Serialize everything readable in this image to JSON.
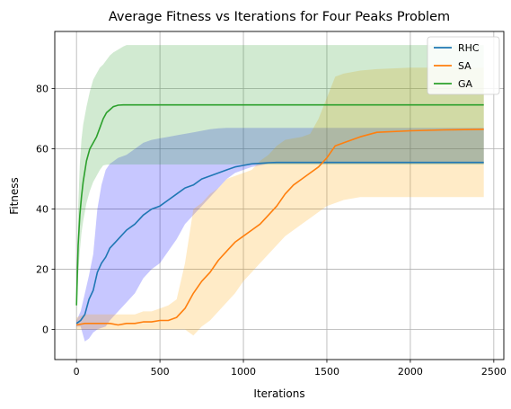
{
  "chart_data": {
    "type": "line",
    "title": "Average Fitness vs Iterations for Four Peaks Problem",
    "xlabel": "Iterations",
    "ylabel": "Fitness",
    "xlim": [
      -130,
      2560
    ],
    "ylim": [
      -10,
      99
    ],
    "xticks": [
      0,
      500,
      1000,
      1500,
      2000,
      2500
    ],
    "yticks": [
      0,
      20,
      40,
      60,
      80
    ],
    "grid": true,
    "legend_position": "top-right",
    "series": [
      {
        "name": "RHC",
        "color": "#1f77b4",
        "band_color": "#0000ff",
        "x": [
          0,
          25,
          50,
          75,
          100,
          125,
          150,
          175,
          200,
          250,
          300,
          350,
          400,
          450,
          500,
          550,
          600,
          650,
          700,
          750,
          800,
          850,
          900,
          950,
          1000,
          1050,
          1100,
          1150,
          1200,
          1300,
          1400,
          1500,
          1600,
          1800,
          2000,
          2200,
          2440
        ],
        "y": [
          2,
          3,
          5,
          10,
          13,
          19,
          22,
          24,
          27,
          30,
          33,
          35,
          38,
          40,
          41,
          43,
          45,
          47,
          48,
          50,
          51,
          52,
          53,
          54,
          54.5,
          55,
          55.2,
          55.4,
          55.5,
          55.5,
          55.5,
          55.5,
          55.5,
          55.5,
          55.5,
          55.5,
          55.5
        ],
        "upper": [
          3,
          6,
          12,
          18,
          25,
          40,
          48,
          53,
          55,
          57,
          58,
          60,
          62,
          63,
          63.5,
          64,
          64.5,
          65,
          65.5,
          66,
          66.5,
          66.8,
          67,
          67,
          67,
          67,
          67,
          67,
          67,
          67,
          67,
          67,
          67,
          67,
          67,
          67,
          67
        ],
        "lower": [
          1,
          1,
          -4,
          -3,
          -1,
          0,
          0.5,
          1,
          3,
          6,
          9,
          12,
          17,
          20,
          22,
          26,
          30,
          35,
          38,
          41,
          44,
          47,
          50,
          52,
          53,
          54,
          54.5,
          55,
          55,
          55,
          55,
          55,
          55,
          55,
          55,
          55,
          55
        ]
      },
      {
        "name": "SA",
        "color": "#ff7f0e",
        "band_color": "#ffa500",
        "x": [
          0,
          50,
          100,
          150,
          200,
          250,
          300,
          350,
          400,
          450,
          500,
          550,
          600,
          650,
          700,
          750,
          800,
          850,
          900,
          950,
          1000,
          1050,
          1100,
          1150,
          1200,
          1250,
          1300,
          1350,
          1400,
          1450,
          1500,
          1550,
          1600,
          1700,
          1800,
          2000,
          2200,
          2440
        ],
        "y": [
          1.5,
          2,
          2,
          2,
          2,
          1.5,
          2,
          2,
          2.5,
          2.5,
          3,
          3,
          4,
          7,
          12,
          16,
          19,
          23,
          26,
          29,
          31,
          33,
          35,
          38,
          41,
          45,
          48,
          50,
          52,
          54,
          57,
          61,
          62,
          64,
          65.5,
          66,
          66.3,
          66.5
        ],
        "upper": [
          4,
          5,
          5,
          5,
          5,
          5,
          5,
          5,
          6,
          6,
          7,
          8,
          10,
          22,
          40,
          42,
          45,
          47,
          50,
          51,
          52,
          53,
          56,
          58,
          61,
          63,
          63.5,
          64,
          65,
          70,
          77,
          84,
          85,
          86,
          86.5,
          87,
          87,
          87
        ],
        "lower": [
          0,
          0,
          0,
          0,
          0,
          0,
          0,
          0,
          0,
          0,
          0,
          0,
          0,
          0,
          -2,
          1,
          3,
          6,
          9,
          12,
          16,
          19,
          22,
          25,
          28,
          31,
          33,
          35,
          37,
          39,
          41,
          42,
          43,
          44,
          44,
          44,
          44,
          44
        ]
      },
      {
        "name": "GA",
        "color": "#2ca02c",
        "band_color": "#2ca02c",
        "x": [
          0,
          10,
          20,
          30,
          40,
          60,
          80,
          100,
          120,
          140,
          160,
          180,
          200,
          220,
          250,
          280,
          300,
          400,
          600,
          1000,
          1500,
          2000,
          2440
        ],
        "y": [
          8,
          28,
          38,
          44,
          49,
          56,
          60,
          62,
          64,
          67,
          70,
          72,
          73,
          74,
          74.5,
          74.6,
          74.6,
          74.6,
          74.6,
          74.6,
          74.6,
          74.6,
          74.6
        ],
        "upper": [
          12,
          40,
          55,
          63,
          68,
          74,
          79,
          83,
          85,
          87,
          88,
          89.5,
          91,
          92,
          93,
          94,
          94.5,
          94.5,
          94.5,
          94.5,
          94.5,
          94.5,
          94.5
        ],
        "lower": [
          5,
          18,
          26,
          32,
          36,
          42,
          46,
          49,
          51,
          53,
          54.5,
          54.7,
          54.8,
          54.8,
          54.8,
          54.8,
          54.8,
          54.8,
          54.8,
          54.8,
          54.8,
          54.8,
          54.8
        ]
      }
    ]
  }
}
